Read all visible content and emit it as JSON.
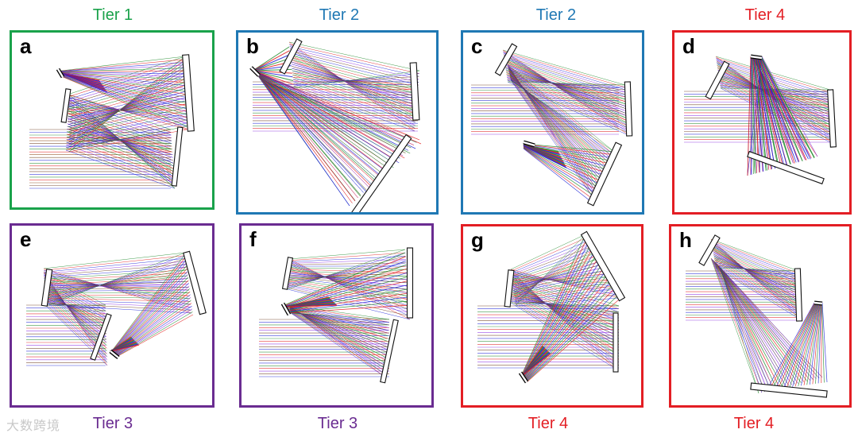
{
  "colors": {
    "green": "#1aa24b",
    "blue": "#1f78b4",
    "purple": "#6a2c91",
    "red": "#e31e24",
    "ray_green": "#1f8a2a",
    "ray_red": "#e01b1b",
    "ray_blue": "#1b22d6",
    "ray_purple": "#8a2be2"
  },
  "panels": [
    {
      "letter": "a",
      "tier": "Tier 1",
      "color": "green",
      "label_pos": "top"
    },
    {
      "letter": "b",
      "tier": "Tier 2",
      "color": "blue",
      "label_pos": "top"
    },
    {
      "letter": "c",
      "tier": "Tier 2",
      "color": "blue",
      "label_pos": "top"
    },
    {
      "letter": "d",
      "tier": "Tier 4",
      "color": "red",
      "label_pos": "top"
    },
    {
      "letter": "e",
      "tier": "Tier 3",
      "color": "purple",
      "label_pos": "bottom"
    },
    {
      "letter": "f",
      "tier": "Tier 3",
      "color": "purple",
      "label_pos": "bottom"
    },
    {
      "letter": "g",
      "tier": "Tier 4",
      "color": "red",
      "label_pos": "bottom"
    },
    {
      "letter": "h",
      "tier": "Tier 4",
      "color": "red",
      "label_pos": "bottom"
    }
  ],
  "watermark": "大数跨境"
}
